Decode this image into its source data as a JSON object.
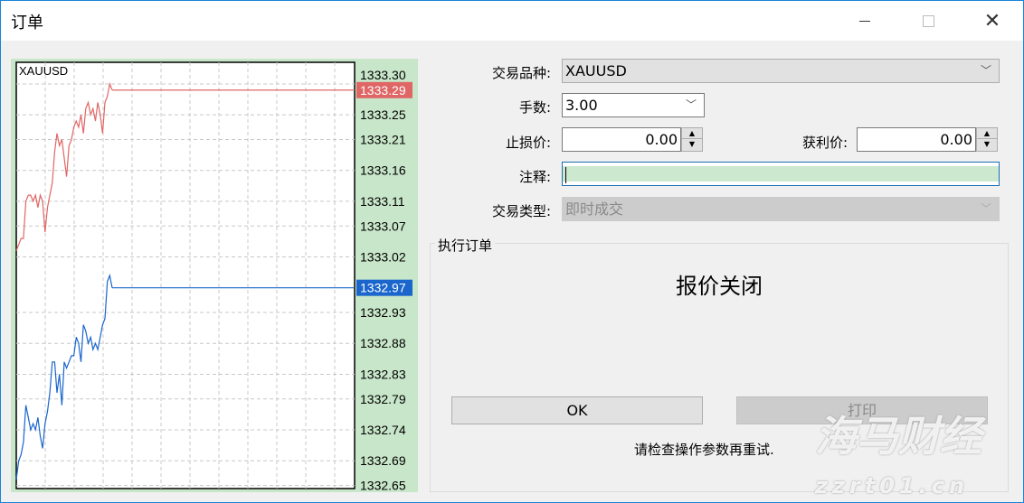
{
  "window": {
    "title": "订单",
    "minimize_icon": "minimize-icon",
    "maximize_icon": "maximize-icon",
    "close_icon": "close-icon"
  },
  "chart_data": {
    "type": "line",
    "title": "XAUUSD",
    "ylim": [
      1332.645,
      1333.335
    ],
    "yticks": [
      "1333.30",
      "1333.25",
      "1333.21",
      "1333.16",
      "1333.11",
      "1333.07",
      "1333.02",
      "1332.93",
      "1332.88",
      "1332.83",
      "1332.79",
      "1332.74",
      "1332.69",
      "1332.65"
    ],
    "grid": true,
    "series": [
      {
        "color": "#e06666",
        "last": "1333.29",
        "values": [
          1333.03,
          1333.04,
          1333.05,
          1333.05,
          1333.11,
          1333.12,
          1333.12,
          1333.11,
          1333.12,
          1333.1,
          1333.12,
          1333.11,
          1333.06,
          1333.1,
          1333.12,
          1333.14,
          1333.19,
          1333.22,
          1333.2,
          1333.21,
          1333.18,
          1333.15,
          1333.2,
          1333.21,
          1333.23,
          1333.24,
          1333.23,
          1333.25,
          1333.22,
          1333.26,
          1333.27,
          1333.25,
          1333.26,
          1333.24,
          1333.27,
          1333.25,
          1333.22,
          1333.27,
          1333.28,
          1333.3,
          1333.29
        ]
      },
      {
        "color": "#1a66cc",
        "last": "1332.97",
        "values": [
          1332.66,
          1332.69,
          1332.7,
          1332.72,
          1332.78,
          1332.76,
          1332.74,
          1332.75,
          1332.74,
          1332.76,
          1332.73,
          1332.71,
          1332.75,
          1332.77,
          1332.8,
          1332.85,
          1332.85,
          1332.8,
          1332.83,
          1332.78,
          1332.85,
          1332.84,
          1332.85,
          1332.86,
          1332.86,
          1332.89,
          1332.88,
          1332.85,
          1332.91,
          1332.9,
          1332.88,
          1332.89,
          1332.87,
          1332.88,
          1332.87,
          1332.89,
          1332.91,
          1332.92,
          1332.98,
          1332.99,
          1332.97
        ]
      }
    ]
  },
  "form": {
    "symbol_label": "交易品种:",
    "symbol_value": "XAUUSD",
    "volume_label": "手数:",
    "volume_value": "3.00",
    "sl_label": "止损价:",
    "sl_value": "0.00",
    "tp_label": "获利价:",
    "tp_value": "0.00",
    "comment_label": "注释:",
    "comment_value": "",
    "type_label": "交易类型:",
    "type_value": "即时成交"
  },
  "execution": {
    "group_title": "执行订单",
    "status": "报价关闭",
    "ok_label": "OK",
    "print_label": "打印",
    "message": "请检查操作参数再重试."
  },
  "watermark": {
    "text": "海马财经",
    "url": "zzrt01.cn"
  }
}
